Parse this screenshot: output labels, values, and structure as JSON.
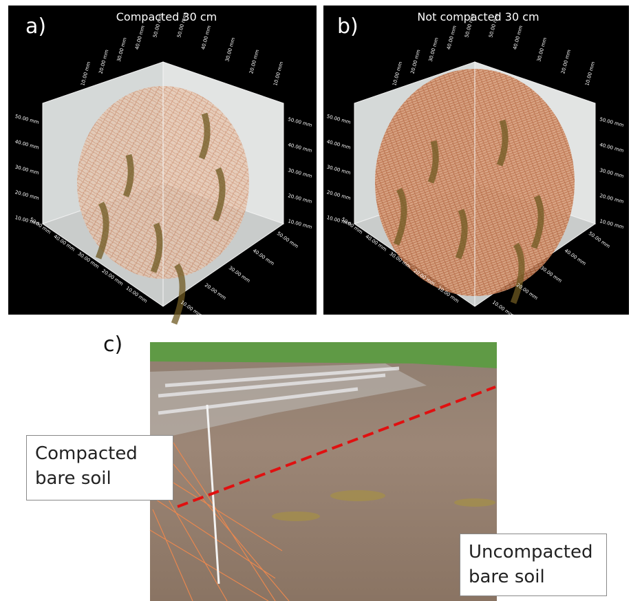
{
  "panels": [
    {
      "letter": "a)",
      "title": "Compacted 30 cm",
      "left_axis": [
        "50.00 mm",
        "40.00 mm",
        "30.00 mm",
        "20.00 mm",
        "10.00 mm"
      ],
      "right_axis": [
        "50.00 mm",
        "40.00 mm",
        "30.00 mm",
        "20.00 mm",
        "10.00 mm"
      ],
      "front_left_axis": [
        "50.00 mm",
        "40.00 mm",
        "30.00 mm",
        "20.00 mm",
        "10.00 mm"
      ],
      "front_right_axis": [
        "50.00 mm",
        "40.00 mm",
        "30.00 mm",
        "20.00 mm",
        "10.00 mm"
      ],
      "top_left_axis": [
        "10.00 mm",
        "20.00 mm",
        "30.00 mm",
        "40.00 mm",
        "50.00 mm"
      ],
      "top_right_axis": [
        "50.00 mm",
        "40.00 mm",
        "30.00 mm",
        "20.00 mm",
        "10.00 mm"
      ]
    },
    {
      "letter": "b)",
      "title": "Not compacted 30 cm",
      "left_axis": [
        "50.00 mm",
        "40.00 mm",
        "30.00 mm",
        "20.00 mm",
        "10.00 mm"
      ],
      "right_axis": [
        "50.00 mm",
        "40.00 mm",
        "30.00 mm",
        "20.00 mm",
        "10.00 mm"
      ],
      "front_left_axis": [
        "50.00 mm",
        "40.00 mm",
        "30.00 mm",
        "20.00 mm",
        "10.00 mm"
      ],
      "front_right_axis": [
        "50.00 mm",
        "40.00 mm",
        "30.00 mm",
        "20.00 mm",
        "10.00 mm"
      ],
      "top_left_axis": [
        "10.00 mm",
        "20.00 mm",
        "30.00 mm",
        "40.00 mm",
        "50.00 mm"
      ],
      "top_right_axis": [
        "50.00 mm",
        "40.00 mm",
        "30.00 mm",
        "20.00 mm",
        "10.00 mm"
      ]
    }
  ],
  "photo": {
    "letter": "c)",
    "label_left": "Compacted bare soil",
    "label_right": "Uncompacted bare soil"
  }
}
